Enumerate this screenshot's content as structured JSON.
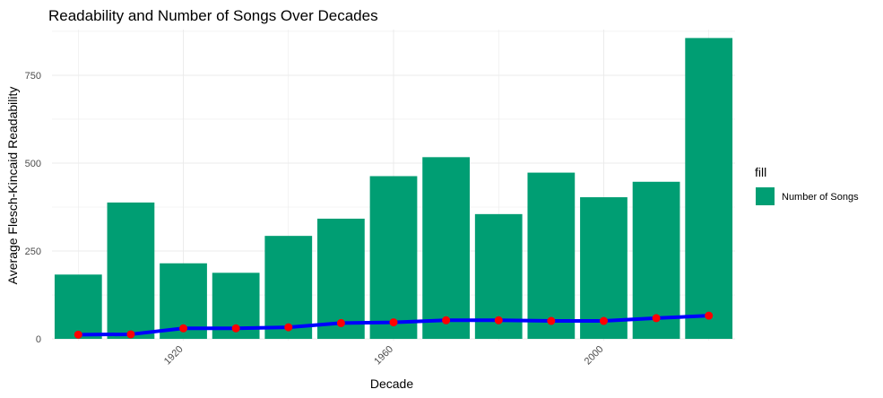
{
  "chart_data": {
    "type": "bar",
    "title": "Readability and Number of Songs Over Decades",
    "xlabel": "Decade",
    "ylabel": "Average Flesch-Kincaid Readability",
    "x_ticks": [
      1920,
      1960,
      2000
    ],
    "y_ticks": [
      0,
      250,
      500,
      750
    ],
    "xlim": [
      1895,
      2025
    ],
    "ylim": [
      -5,
      880
    ],
    "grid": true,
    "legend": {
      "title": "fill",
      "position": "right",
      "entries": [
        {
          "label": "Number of Songs",
          "color": "#009E73"
        }
      ]
    },
    "categories": [
      1900,
      1910,
      1920,
      1930,
      1940,
      1950,
      1960,
      1970,
      1980,
      1990,
      2000,
      2010,
      2020
    ],
    "series": [
      {
        "type": "bar",
        "color": "#009E73",
        "values": [
          183,
          388,
          215,
          188,
          293,
          342,
          463,
          517,
          355,
          473,
          403,
          447,
          856
        ]
      },
      {
        "type": "line",
        "color": "#0000FF",
        "point_color": "#FF0000",
        "values": [
          12,
          13,
          30,
          30,
          33,
          45,
          47,
          53,
          53,
          51,
          51,
          59,
          66
        ]
      }
    ]
  }
}
